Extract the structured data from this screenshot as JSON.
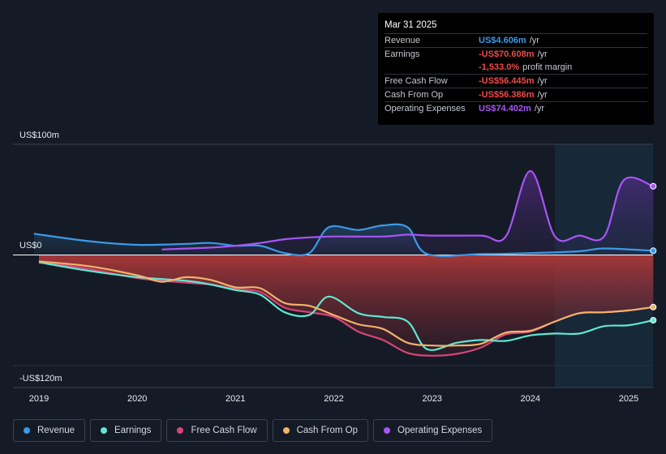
{
  "tooltip": {
    "date": "Mar 31 2025",
    "rows": [
      {
        "label": "Revenue",
        "value": "US$4.606m",
        "unit": "/yr",
        "color": "#3b9ae8"
      },
      {
        "label": "Earnings",
        "value": "-US$70.608m",
        "unit": "/yr",
        "color": "#ef4a4a"
      },
      {
        "label": "",
        "value": "-1,533.0%",
        "unit": "profit margin",
        "color": "#ef4a4a"
      },
      {
        "label": "Free Cash Flow",
        "value": "-US$56.445m",
        "unit": "/yr",
        "color": "#ef4a4a"
      },
      {
        "label": "Cash From Op",
        "value": "-US$56.386m",
        "unit": "/yr",
        "color": "#ef4a4a"
      },
      {
        "label": "Operating Expenses",
        "value": "US$74.402m",
        "unit": "/yr",
        "color": "#a855f7"
      }
    ]
  },
  "legend": [
    {
      "label": "Revenue",
      "color": "#3b9ae8"
    },
    {
      "label": "Earnings",
      "color": "#5ee8d2"
    },
    {
      "label": "Free Cash Flow",
      "color": "#d6457a"
    },
    {
      "label": "Cash From Op",
      "color": "#f2b26b"
    },
    {
      "label": "Operating Expenses",
      "color": "#a855f7"
    }
  ],
  "chart_data": {
    "type": "line",
    "title": "",
    "xlabel": "",
    "ylabel": "",
    "xlim": [
      2018.95,
      2025.25
    ],
    "ylim": [
      -120,
      100
    ],
    "y_tick_labels": [
      {
        "value": 100,
        "label": "US$100m"
      },
      {
        "value": 0,
        "label": "US$0"
      },
      {
        "value": -120,
        "label": "-US$120m"
      }
    ],
    "x_ticks": [
      {
        "value": 2019,
        "label": "2019"
      },
      {
        "value": 2020,
        "label": "2020"
      },
      {
        "value": 2021,
        "label": "2021"
      },
      {
        "value": 2022,
        "label": "2022"
      },
      {
        "value": 2023,
        "label": "2023"
      },
      {
        "value": 2024,
        "label": "2024"
      },
      {
        "value": 2025,
        "label": "2025"
      }
    ],
    "forecast_region_start": 2024.25,
    "series": [
      {
        "name": "Revenue",
        "color": "#3b9ae8",
        "points": [
          [
            2018.95,
            23
          ],
          [
            2019.5,
            15
          ],
          [
            2020,
            11
          ],
          [
            2020.5,
            12
          ],
          [
            2020.75,
            13
          ],
          [
            2021,
            10
          ],
          [
            2021.25,
            10
          ],
          [
            2021.5,
            2
          ],
          [
            2021.75,
            2
          ],
          [
            2021.95,
            30
          ],
          [
            2022.25,
            27
          ],
          [
            2022.5,
            32
          ],
          [
            2022.75,
            30
          ],
          [
            2022.95,
            1
          ],
          [
            2023.5,
            1
          ],
          [
            2024,
            2
          ],
          [
            2024.5,
            4
          ],
          [
            2024.75,
            7
          ],
          [
            2025.25,
            4.6
          ]
        ]
      },
      {
        "name": "Operating Expenses",
        "color": "#a855f7",
        "points": [
          [
            2020.25,
            6
          ],
          [
            2020.75,
            8
          ],
          [
            2021,
            10
          ],
          [
            2021.25,
            13
          ],
          [
            2021.5,
            17
          ],
          [
            2021.75,
            19
          ],
          [
            2022,
            20
          ],
          [
            2022.5,
            20
          ],
          [
            2022.75,
            22
          ],
          [
            2023,
            21
          ],
          [
            2023.5,
            21
          ],
          [
            2023.75,
            20
          ],
          [
            2024,
            91
          ],
          [
            2024.25,
            20
          ],
          [
            2024.5,
            21
          ],
          [
            2024.75,
            20
          ],
          [
            2024.95,
            81
          ],
          [
            2025.25,
            74.4
          ]
        ]
      },
      {
        "name": "Free Cash Flow",
        "color": "#d6457a",
        "points": [
          [
            2019,
            -7
          ],
          [
            2019.5,
            -15
          ],
          [
            2020,
            -25
          ],
          [
            2020.5,
            -30
          ],
          [
            2020.75,
            -32
          ],
          [
            2021,
            -37
          ],
          [
            2021.25,
            -40
          ],
          [
            2021.5,
            -57
          ],
          [
            2021.75,
            -62
          ],
          [
            2022,
            -67
          ],
          [
            2022.25,
            -83
          ],
          [
            2022.5,
            -92
          ],
          [
            2022.75,
            -106
          ],
          [
            2023,
            -109
          ],
          [
            2023.25,
            -107
          ],
          [
            2023.5,
            -100
          ],
          [
            2023.75,
            -86
          ],
          [
            2024,
            -83
          ],
          [
            2024.25,
            -72
          ],
          [
            2024.5,
            -63
          ],
          [
            2024.75,
            -62
          ],
          [
            2025,
            -60
          ],
          [
            2025.25,
            -56.4
          ]
        ]
      },
      {
        "name": "Cash From Op",
        "color": "#f2b26b",
        "points": [
          [
            2019,
            -7
          ],
          [
            2019.5,
            -12
          ],
          [
            2020,
            -22
          ],
          [
            2020.25,
            -29
          ],
          [
            2020.5,
            -24
          ],
          [
            2020.75,
            -27
          ],
          [
            2021,
            -35
          ],
          [
            2021.25,
            -36
          ],
          [
            2021.5,
            -52
          ],
          [
            2021.75,
            -55
          ],
          [
            2022,
            -65
          ],
          [
            2022.25,
            -75
          ],
          [
            2022.5,
            -80
          ],
          [
            2022.75,
            -95
          ],
          [
            2023,
            -98
          ],
          [
            2023.25,
            -98
          ],
          [
            2023.5,
            -96
          ],
          [
            2023.75,
            -84
          ],
          [
            2024,
            -82
          ],
          [
            2024.25,
            -72
          ],
          [
            2024.5,
            -63
          ],
          [
            2024.75,
            -62
          ],
          [
            2025,
            -60
          ],
          [
            2025.25,
            -56.4
          ]
        ]
      },
      {
        "name": "Earnings",
        "color": "#5ee8d2",
        "points": [
          [
            2019,
            -8
          ],
          [
            2019.5,
            -17
          ],
          [
            2020,
            -24
          ],
          [
            2020.5,
            -28
          ],
          [
            2020.75,
            -32
          ],
          [
            2021,
            -38
          ],
          [
            2021.25,
            -43
          ],
          [
            2021.5,
            -62
          ],
          [
            2021.75,
            -65
          ],
          [
            2021.95,
            -45
          ],
          [
            2022.25,
            -63
          ],
          [
            2022.5,
            -67
          ],
          [
            2022.75,
            -72
          ],
          [
            2022.95,
            -102
          ],
          [
            2023.25,
            -95
          ],
          [
            2023.5,
            -92
          ],
          [
            2023.75,
            -93
          ],
          [
            2024,
            -87
          ],
          [
            2024.25,
            -85
          ],
          [
            2024.5,
            -85
          ],
          [
            2024.75,
            -77
          ],
          [
            2025,
            -76
          ],
          [
            2025.25,
            -70.6
          ]
        ]
      }
    ]
  }
}
